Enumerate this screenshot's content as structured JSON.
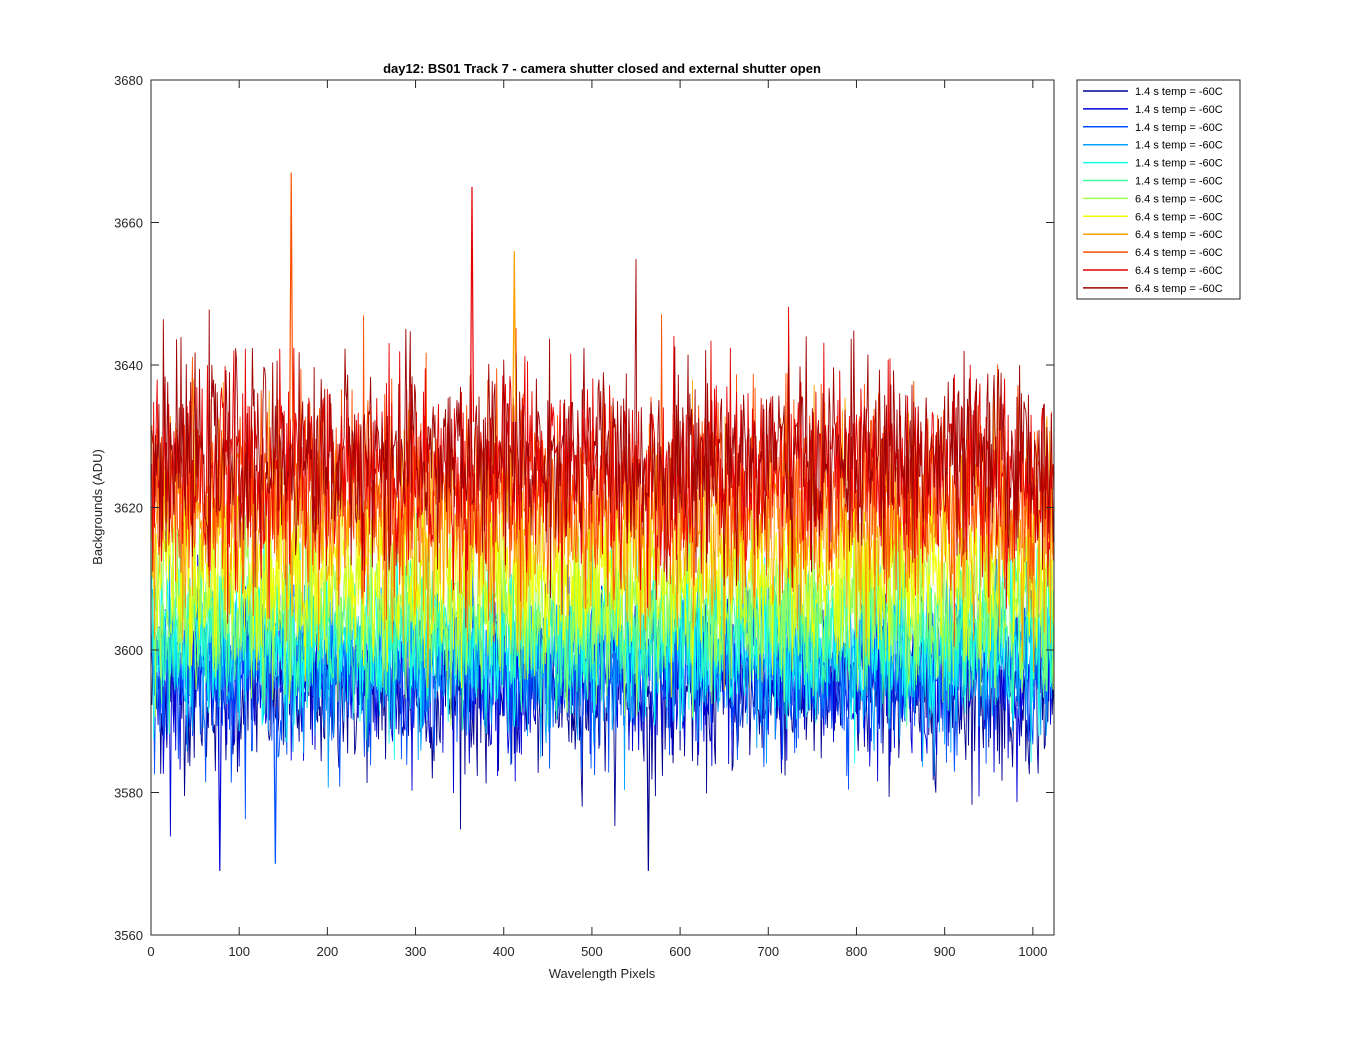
{
  "chart_data": {
    "type": "line",
    "title": "day12: BS01  Track 7 - camera shutter closed and external shutter open",
    "xlabel": "Wavelength Pixels",
    "ylabel": "Backgrounds (ADU)",
    "xlim": [
      0,
      1024
    ],
    "ylim": [
      3560,
      3680
    ],
    "xticks": [
      0,
      100,
      200,
      300,
      400,
      500,
      600,
      700,
      800,
      900,
      1000
    ],
    "yticks": [
      3560,
      3580,
      3600,
      3620,
      3640,
      3660,
      3680
    ],
    "x_range": [
      1,
      1024
    ],
    "grid": false,
    "legend_position": "outside top-right",
    "series": [
      {
        "name": "1.4 s temp = -60C",
        "color": "#00008f",
        "mean": 3594,
        "noise_sd": 5.5
      },
      {
        "name": "1.4 s temp = -60C",
        "color": "#0000d9",
        "mean": 3596,
        "noise_sd": 5.5
      },
      {
        "name": "1.4 s temp = -60C",
        "color": "#0050ff",
        "mean": 3597,
        "noise_sd": 5.5
      },
      {
        "name": "1.4 s temp = -60C",
        "color": "#00a0ff",
        "mean": 3599,
        "noise_sd": 5.5
      },
      {
        "name": "1.4 s temp = -60C",
        "color": "#10ffef",
        "mean": 3601,
        "noise_sd": 5.5
      },
      {
        "name": "1.4 s temp = -60C",
        "color": "#40ffa0",
        "mean": 3603,
        "noise_sd": 5
      },
      {
        "name": "6.4 s temp = -60C",
        "color": "#a0ff50",
        "mean": 3606,
        "noise_sd": 5.5
      },
      {
        "name": "6.4 s temp = -60C",
        "color": "#f0ff00",
        "mean": 3611,
        "noise_sd": 6
      },
      {
        "name": "6.4 s temp = -60C",
        "color": "#ffa000",
        "mean": 3618,
        "noise_sd": 7
      },
      {
        "name": "6.4 s temp = -60C",
        "color": "#ff5000",
        "mean": 3622,
        "noise_sd": 7
      },
      {
        "name": "6.4 s temp = -60C",
        "color": "#e60000",
        "mean": 3625,
        "noise_sd": 7
      },
      {
        "name": "6.4 s temp = -60C",
        "color": "#9f0000",
        "mean": 3627,
        "noise_sd": 6.5
      }
    ],
    "notable_extremes": [
      {
        "x": 159,
        "y": 3667
      },
      {
        "x": 364,
        "y": 3665
      },
      {
        "x": 412,
        "y": 3656
      },
      {
        "x": 78,
        "y": 3569
      },
      {
        "x": 564,
        "y": 3569
      },
      {
        "x": 141,
        "y": 3570
      }
    ]
  }
}
